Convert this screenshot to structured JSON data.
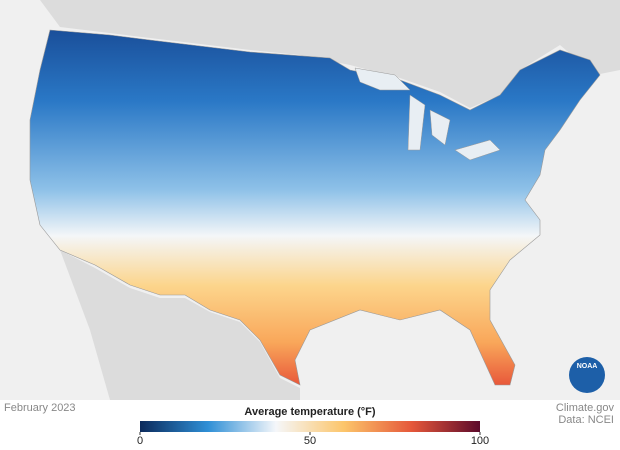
{
  "footer": {
    "date": "February 2023",
    "credit": "Climate.gov",
    "source": "Data: NCEI"
  },
  "logo": {
    "label": "NOAA"
  },
  "legend": {
    "title": "Average temperature (°F)",
    "range": [
      0,
      100
    ],
    "ticks": [
      0,
      50,
      100
    ],
    "colors": [
      "#0b2a5c",
      "#2f8fd6",
      "#f5f7fa",
      "#fcc56a",
      "#e5573a",
      "#5c0a2b"
    ]
  }
}
